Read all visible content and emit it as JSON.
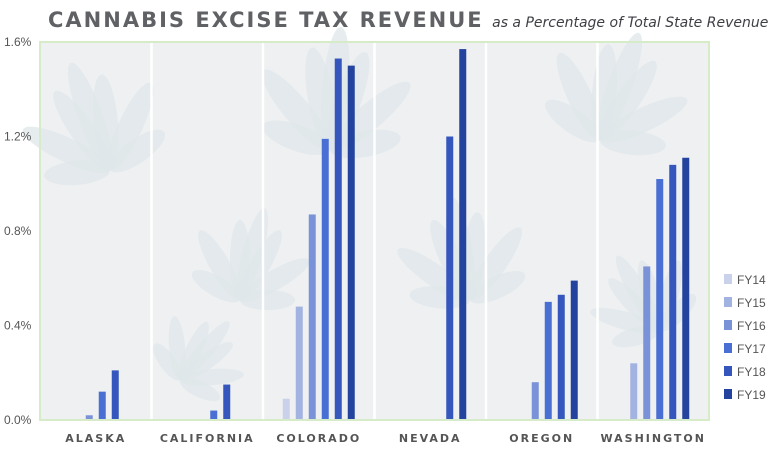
{
  "title": "CANNABIS EXCISE TAX REVENUE",
  "subtitle": "as a Percentage of Total State Revenue",
  "colors": {
    "FY14": "#c9d2ea",
    "FY15": "#a2b3e2",
    "FY16": "#7a93d8",
    "FY17": "#4a6fd4",
    "FY18": "#3456bd",
    "FY19": "#23439e",
    "background": "#eef0f1",
    "leaf": "#dfe7ea",
    "frame": "#d6ecc8"
  },
  "chart_data": {
    "type": "bar",
    "categories": [
      "ALASKA",
      "CALIFORNIA",
      "COLORADO",
      "NEVADA",
      "OREGON",
      "WASHINGTON"
    ],
    "series": [
      {
        "name": "FY14",
        "values": [
          0,
          0,
          0.09,
          0,
          0,
          0
        ]
      },
      {
        "name": "FY15",
        "values": [
          0,
          0,
          0.48,
          0,
          0,
          0.24
        ]
      },
      {
        "name": "FY16",
        "values": [
          0.02,
          0,
          0.87,
          0,
          0.16,
          0.65
        ]
      },
      {
        "name": "FY17",
        "values": [
          0.12,
          0.04,
          1.19,
          0,
          0.5,
          1.02
        ]
      },
      {
        "name": "FY18",
        "values": [
          0.21,
          0.15,
          1.53,
          1.2,
          0.53,
          1.08
        ]
      },
      {
        "name": "FY19",
        "values": [
          0,
          0,
          1.5,
          1.57,
          0.59,
          1.11
        ]
      }
    ],
    "yticks": [
      "0.0%",
      "0.4%",
      "0.8%",
      "1.2%",
      "1.6%"
    ],
    "ylim": [
      0,
      1.6
    ],
    "legend_position": "right",
    "grid": false
  }
}
